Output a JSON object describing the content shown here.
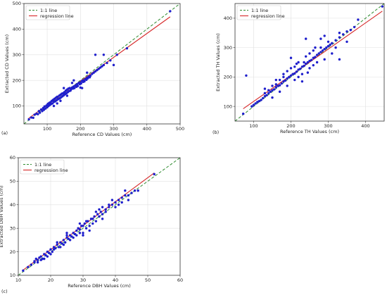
{
  "colors": {
    "identity_line": "#2e8b2e",
    "regression_line": "#d62728",
    "points": "#1f1fcc",
    "axes": "#333333"
  },
  "chart_data": [
    {
      "type": "scatter",
      "panel_label": "(a)",
      "xlabel": "Reference CD Values (cm)",
      "ylabel": "Extracted CD Values (cm)",
      "xlim": [
        30,
        500
      ],
      "ylim": [
        30,
        500
      ],
      "xticks": [
        100,
        200,
        300,
        400,
        500
      ],
      "yticks": [
        100,
        200,
        300,
        400,
        500
      ],
      "grid": true,
      "legend_position": "top-left",
      "identity_line_label": "1:1 line",
      "regression_line_label": "regression line",
      "regression": {
        "slope": 0.93,
        "intercept": 11
      },
      "points": [
        [
          45,
          48
        ],
        [
          52,
          55
        ],
        [
          58,
          54
        ],
        [
          62,
          66
        ],
        [
          68,
          70
        ],
        [
          72,
          68
        ],
        [
          75,
          80
        ],
        [
          78,
          74
        ],
        [
          82,
          86
        ],
        [
          85,
          80
        ],
        [
          88,
          92
        ],
        [
          90,
          85
        ],
        [
          92,
          98
        ],
        [
          95,
          90
        ],
        [
          98,
          102
        ],
        [
          100,
          95
        ],
        [
          102,
          108
        ],
        [
          104,
          100
        ],
        [
          106,
          112
        ],
        [
          108,
          104
        ],
        [
          110,
          115
        ],
        [
          112,
          108
        ],
        [
          114,
          120
        ],
        [
          116,
          110
        ],
        [
          118,
          124
        ],
        [
          120,
          116
        ],
        [
          122,
          128
        ],
        [
          124,
          118
        ],
        [
          126,
          132
        ],
        [
          128,
          122
        ],
        [
          130,
          136
        ],
        [
          132,
          126
        ],
        [
          134,
          128
        ],
        [
          136,
          140
        ],
        [
          138,
          130
        ],
        [
          140,
          144
        ],
        [
          142,
          134
        ],
        [
          144,
          148
        ],
        [
          146,
          138
        ],
        [
          148,
          150
        ],
        [
          150,
          142
        ],
        [
          152,
          154
        ],
        [
          154,
          146
        ],
        [
          156,
          160
        ],
        [
          158,
          150
        ],
        [
          160,
          164
        ],
        [
          162,
          154
        ],
        [
          164,
          168
        ],
        [
          166,
          158
        ],
        [
          168,
          170
        ],
        [
          170,
          160
        ],
        [
          172,
          165
        ],
        [
          175,
          172
        ],
        [
          178,
          168
        ],
        [
          180,
          176
        ],
        [
          182,
          170
        ],
        [
          185,
          180
        ],
        [
          188,
          175
        ],
        [
          190,
          185
        ],
        [
          192,
          178
        ],
        [
          195,
          190
        ],
        [
          198,
          185
        ],
        [
          200,
          192
        ],
        [
          202,
          188
        ],
        [
          205,
          198
        ],
        [
          208,
          194
        ],
        [
          210,
          200
        ],
        [
          212,
          196
        ],
        [
          215,
          205
        ],
        [
          218,
          202
        ],
        [
          220,
          210
        ],
        [
          222,
          208
        ],
        [
          225,
          215
        ],
        [
          228,
          212
        ],
        [
          230,
          218
        ],
        [
          235,
          225
        ],
        [
          240,
          230
        ],
        [
          245,
          235
        ],
        [
          250,
          240
        ],
        [
          255,
          245
        ],
        [
          260,
          250
        ],
        [
          265,
          255
        ],
        [
          270,
          260
        ],
        [
          280,
          268
        ],
        [
          290,
          278
        ],
        [
          310,
          300
        ],
        [
          340,
          325
        ],
        [
          470,
          470
        ],
        [
          120,
          100
        ],
        [
          140,
          120
        ],
        [
          160,
          140
        ],
        [
          180,
          200
        ],
        [
          200,
          172
        ],
        [
          220,
          230
        ],
        [
          245,
          300
        ],
        [
          270,
          300
        ],
        [
          300,
          260
        ],
        [
          205,
          170
        ],
        [
          175,
          190
        ],
        [
          150,
          170
        ],
        [
          130,
          110
        ]
      ]
    },
    {
      "type": "scatter",
      "panel_label": "(b)",
      "xlabel": "Reference TH Values (cm)",
      "ylabel": "Extracted TH Values (cm)",
      "xlim": [
        50,
        450
      ],
      "ylim": [
        50,
        450
      ],
      "xticks": [
        100,
        200,
        300,
        400
      ],
      "yticks": [
        100,
        200,
        300,
        400
      ],
      "grid": true,
      "legend_position": "top-left",
      "identity_line_label": "1:1 line",
      "regression_line_label": "regression line",
      "regression": {
        "slope": 0.89,
        "intercept": 28
      },
      "points": [
        [
          72,
          75
        ],
        [
          80,
          205
        ],
        [
          95,
          100
        ],
        [
          100,
          105
        ],
        [
          105,
          110
        ],
        [
          110,
          115
        ],
        [
          115,
          118
        ],
        [
          120,
          122
        ],
        [
          125,
          128
        ],
        [
          130,
          135
        ],
        [
          135,
          138
        ],
        [
          140,
          145
        ],
        [
          145,
          150
        ],
        [
          150,
          155
        ],
        [
          155,
          158
        ],
        [
          160,
          165
        ],
        [
          165,
          170
        ],
        [
          170,
          172
        ],
        [
          175,
          178
        ],
        [
          180,
          185
        ],
        [
          185,
          188
        ],
        [
          190,
          195
        ],
        [
          195,
          200
        ],
        [
          200,
          205
        ],
        [
          205,
          210
        ],
        [
          210,
          212
        ],
        [
          215,
          218
        ],
        [
          220,
          225
        ],
        [
          225,
          228
        ],
        [
          230,
          235
        ],
        [
          235,
          238
        ],
        [
          240,
          245
        ],
        [
          245,
          250
        ],
        [
          250,
          255
        ],
        [
          255,
          258
        ],
        [
          260,
          265
        ],
        [
          265,
          268
        ],
        [
          270,
          275
        ],
        [
          275,
          280
        ],
        [
          280,
          285
        ],
        [
          285,
          290
        ],
        [
          290,
          295
        ],
        [
          295,
          300
        ],
        [
          300,
          305
        ],
        [
          305,
          310
        ],
        [
          310,
          315
        ],
        [
          320,
          325
        ],
        [
          330,
          335
        ],
        [
          340,
          345
        ],
        [
          350,
          355
        ],
        [
          360,
          360
        ],
        [
          370,
          370
        ],
        [
          380,
          395
        ],
        [
          445,
          440
        ],
        [
          130,
          160
        ],
        [
          150,
          130
        ],
        [
          160,
          190
        ],
        [
          170,
          150
        ],
        [
          180,
          210
        ],
        [
          190,
          170
        ],
        [
          200,
          230
        ],
        [
          210,
          190
        ],
        [
          220,
          250
        ],
        [
          230,
          210
        ],
        [
          240,
          270
        ],
        [
          250,
          230
        ],
        [
          260,
          290
        ],
        [
          270,
          250
        ],
        [
          280,
          330
        ],
        [
          290,
          260
        ],
        [
          300,
          320
        ],
        [
          310,
          280
        ],
        [
          320,
          300
        ],
        [
          330,
          350
        ],
        [
          240,
          330
        ],
        [
          200,
          265
        ],
        [
          230,
          185
        ],
        [
          180,
          200
        ],
        [
          190,
          220
        ],
        [
          210,
          235
        ],
        [
          220,
          200
        ],
        [
          250,
          280
        ],
        [
          260,
          240
        ],
        [
          280,
          300
        ],
        [
          215,
          245
        ],
        [
          235,
          250
        ],
        [
          245,
          215
        ],
        [
          265,
          300
        ],
        [
          170,
          190
        ],
        [
          160,
          175
        ],
        [
          150,
          170
        ],
        [
          140,
          155
        ],
        [
          130,
          145
        ],
        [
          330,
          260
        ],
        [
          290,
          340
        ],
        [
          350,
          320
        ]
      ]
    },
    {
      "type": "scatter",
      "panel_label": "(c)",
      "xlabel": "Reference DBH Values (cm)",
      "ylabel": "Extracted DBH Values (cm)",
      "xlim": [
        10,
        60
      ],
      "ylim": [
        10,
        60
      ],
      "xticks": [
        10,
        20,
        30,
        40,
        50,
        60
      ],
      "yticks": [
        10,
        20,
        30,
        40,
        50,
        60
      ],
      "grid": true,
      "legend_position": "top-left",
      "identity_line_label": "1:1 line",
      "regression_line_label": "regression line",
      "regression": {
        "slope": 1.02,
        "intercept": 0.5
      },
      "points": [
        [
          11.5,
          12
        ],
        [
          13,
          13.5
        ],
        [
          14,
          14.5
        ],
        [
          15,
          15.5
        ],
        [
          15.5,
          17
        ],
        [
          16,
          16.5
        ],
        [
          16.5,
          17.5
        ],
        [
          17,
          18
        ],
        [
          17.5,
          17
        ],
        [
          18,
          19
        ],
        [
          18.5,
          18.5
        ],
        [
          19,
          20
        ],
        [
          19.5,
          19.5
        ],
        [
          20,
          21
        ],
        [
          20.5,
          20
        ],
        [
          21,
          22
        ],
        [
          21.5,
          21.5
        ],
        [
          22,
          23
        ],
        [
          22.5,
          22
        ],
        [
          23,
          24
        ],
        [
          23.5,
          23.5
        ],
        [
          24,
          25
        ],
        [
          24.5,
          24
        ],
        [
          25,
          26
        ],
        [
          25.5,
          25.5
        ],
        [
          26,
          27
        ],
        [
          26.5,
          26.5
        ],
        [
          27,
          28
        ],
        [
          27.5,
          27.5
        ],
        [
          28,
          29
        ],
        [
          28.5,
          30
        ],
        [
          29,
          29.5
        ],
        [
          29.5,
          31
        ],
        [
          30,
          28
        ],
        [
          30.5,
          32
        ],
        [
          31,
          30
        ],
        [
          31.5,
          33
        ],
        [
          32,
          29
        ],
        [
          32.5,
          34
        ],
        [
          33,
          32
        ],
        [
          33.5,
          35
        ],
        [
          34,
          33
        ],
        [
          34.5,
          36
        ],
        [
          35,
          35
        ],
        [
          35.5,
          37
        ],
        [
          36,
          36
        ],
        [
          37,
          38
        ],
        [
          38,
          39
        ],
        [
          39,
          40
        ],
        [
          40,
          41
        ],
        [
          41,
          42
        ],
        [
          42,
          43
        ],
        [
          43,
          44
        ],
        [
          44,
          42
        ],
        [
          45,
          45
        ],
        [
          46,
          46
        ],
        [
          47,
          46
        ],
        [
          52,
          53
        ],
        [
          15,
          16
        ],
        [
          18,
          17
        ],
        [
          20,
          19
        ],
        [
          22,
          24
        ],
        [
          24,
          23
        ],
        [
          26,
          25
        ],
        [
          28,
          27
        ],
        [
          30,
          31
        ],
        [
          32,
          31
        ],
        [
          34,
          37
        ],
        [
          36,
          39
        ],
        [
          38,
          40
        ],
        [
          40,
          39
        ],
        [
          42,
          41
        ],
        [
          44,
          44
        ],
        [
          21,
          21
        ],
        [
          23,
          22
        ],
        [
          25,
          27
        ],
        [
          27,
          26
        ],
        [
          29,
          28
        ],
        [
          31,
          33
        ],
        [
          33,
          34
        ],
        [
          35,
          38
        ],
        [
          37,
          37
        ],
        [
          39,
          42
        ],
        [
          41,
          40
        ],
        [
          43,
          46
        ],
        [
          29,
          32
        ],
        [
          30,
          27
        ],
        [
          25,
          28
        ],
        [
          19,
          18
        ],
        [
          17,
          16.5
        ],
        [
          16,
          15.5
        ],
        [
          36,
          34
        ]
      ]
    }
  ]
}
